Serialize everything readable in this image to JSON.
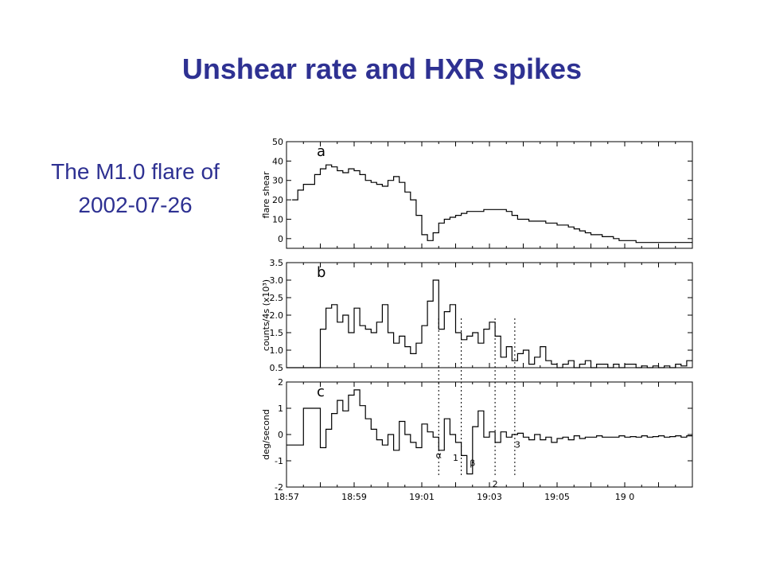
{
  "slide": {
    "title": "Unshear rate and HXR spikes",
    "subtitle_line1": "The M1.0 flare of",
    "subtitle_line2": "2002-07-26",
    "title_color": "#2e3192"
  },
  "chart_data": [
    {
      "type": "line",
      "panel_label": "a",
      "ylabel": "flare shear",
      "ylim": [
        -5,
        50
      ],
      "yticks": [
        "0",
        "10",
        "20",
        "30",
        "40",
        "50"
      ],
      "ytick_values": [
        0,
        10,
        20,
        30,
        40,
        50
      ],
      "xlim": [
        0,
        720
      ],
      "series": [
        {
          "step": true,
          "x": [
            10,
            20,
            30,
            50,
            60,
            70,
            80,
            90,
            100,
            110,
            120,
            130,
            140,
            150,
            160,
            170,
            180,
            190,
            200,
            210,
            220,
            230,
            240,
            250,
            260,
            270,
            280,
            290,
            300,
            310,
            320,
            330,
            340,
            350,
            360,
            370,
            380,
            390,
            400,
            410,
            420,
            430,
            440,
            450,
            460,
            470,
            480,
            490,
            500,
            510,
            520,
            530,
            540,
            550,
            560,
            570,
            580,
            590,
            600,
            610,
            620,
            630,
            640,
            650,
            660,
            670,
            680,
            690,
            700,
            710
          ],
          "y": [
            20,
            25,
            28,
            33,
            36,
            38,
            37,
            35,
            34,
            36,
            35,
            33,
            30,
            29,
            28,
            27,
            30,
            32,
            29,
            24,
            20,
            12,
            2,
            -1,
            3,
            8,
            10,
            11,
            12,
            13,
            14,
            14,
            14,
            15,
            15,
            15,
            15,
            14,
            12,
            10,
            10,
            9,
            9,
            9,
            8,
            8,
            7,
            7,
            6,
            5,
            4,
            3,
            2,
            2,
            1,
            1,
            0,
            -1,
            -1,
            -1,
            -2,
            -2,
            -2,
            -2,
            -2,
            -2,
            -2,
            -2,
            -2,
            -2
          ]
        }
      ]
    },
    {
      "type": "line",
      "panel_label": "b",
      "ylabel": "counts/4s (x10³)",
      "ylim": [
        0.5,
        3.5
      ],
      "yticks": [
        "0.5",
        "1.0",
        "1.5",
        "2.0",
        "2.5",
        "3.0",
        "3.5"
      ],
      "ytick_values": [
        0.5,
        1.0,
        1.5,
        2.0,
        2.5,
        3.0,
        3.5
      ],
      "xlim": [
        0,
        720
      ],
      "series": [
        {
          "step": true,
          "x": [
            0,
            60,
            70,
            80,
            90,
            100,
            110,
            120,
            130,
            140,
            150,
            160,
            170,
            180,
            190,
            200,
            210,
            220,
            230,
            240,
            250,
            260,
            270,
            280,
            290,
            300,
            310,
            320,
            330,
            340,
            350,
            360,
            370,
            380,
            390,
            400,
            410,
            420,
            430,
            440,
            450,
            460,
            470,
            480,
            490,
            500,
            510,
            520,
            530,
            540,
            550,
            560,
            570,
            580,
            590,
            600,
            610,
            620,
            630,
            640,
            650,
            660,
            670,
            680,
            690,
            700,
            710
          ],
          "y": [
            0.5,
            1.6,
            2.2,
            2.3,
            1.8,
            2.0,
            1.5,
            2.2,
            1.7,
            1.6,
            1.5,
            1.8,
            2.3,
            1.5,
            1.2,
            1.4,
            1.1,
            0.9,
            1.2,
            1.7,
            2.4,
            3.0,
            1.6,
            2.1,
            2.3,
            1.5,
            1.3,
            1.4,
            1.5,
            1.2,
            1.6,
            1.8,
            1.4,
            0.8,
            1.1,
            0.7,
            0.9,
            1.0,
            0.6,
            0.8,
            1.1,
            0.7,
            0.6,
            0.5,
            0.6,
            0.7,
            0.5,
            0.6,
            0.7,
            0.5,
            0.6,
            0.6,
            0.5,
            0.6,
            0.5,
            0.6,
            0.6,
            0.5,
            0.55,
            0.5,
            0.55,
            0.5,
            0.55,
            0.5,
            0.6,
            0.55,
            0.7
          ]
        }
      ]
    },
    {
      "type": "line",
      "panel_label": "c",
      "ylabel": "deg/second",
      "ylim": [
        -2,
        2
      ],
      "yticks": [
        "-2",
        "-1",
        "0",
        "1",
        "2"
      ],
      "ytick_values": [
        -2,
        -1,
        0,
        1,
        2
      ],
      "xlim": [
        0,
        720
      ],
      "xlabel": "",
      "xticks": [
        "18:57",
        "18:59",
        "19:01",
        "19:03",
        "19:05",
        "19 0"
      ],
      "xtick_values": [
        0,
        120,
        240,
        360,
        480,
        600
      ],
      "series": [
        {
          "step": true,
          "x": [
            0,
            30,
            60,
            70,
            80,
            90,
            100,
            110,
            120,
            130,
            140,
            150,
            160,
            170,
            180,
            190,
            200,
            210,
            220,
            230,
            240,
            250,
            260,
            270,
            280,
            290,
            300,
            310,
            320,
            330,
            340,
            350,
            360,
            370,
            380,
            390,
            400,
            410,
            420,
            430,
            440,
            450,
            460,
            470,
            480,
            490,
            500,
            510,
            520,
            530,
            540,
            550,
            560,
            570,
            580,
            590,
            600,
            610,
            620,
            630,
            640,
            650,
            660,
            670,
            680,
            690,
            700,
            710
          ],
          "y": [
            -0.4,
            1.0,
            -0.5,
            0.2,
            0.8,
            1.3,
            0.9,
            1.5,
            1.7,
            1.1,
            0.6,
            0.2,
            -0.2,
            -0.4,
            0.0,
            -0.6,
            0.5,
            0.0,
            -0.3,
            -0.5,
            0.4,
            0.1,
            -0.1,
            -0.6,
            0.6,
            0.0,
            -0.3,
            -0.8,
            -1.5,
            0.3,
            0.9,
            -0.1,
            0.1,
            -0.3,
            0.1,
            -0.1,
            0.0,
            0.05,
            -0.1,
            -0.2,
            0.0,
            -0.2,
            -0.1,
            -0.3,
            -0.15,
            -0.1,
            -0.2,
            -0.05,
            -0.15,
            -0.1,
            -0.1,
            -0.05,
            -0.1,
            -0.1,
            -0.1,
            -0.05,
            -0.1,
            -0.08,
            -0.1,
            -0.05,
            -0.1,
            -0.08,
            -0.05,
            -0.1,
            -0.08,
            -0.05,
            -0.1,
            -0.05
          ]
        }
      ],
      "annotations": [
        "α",
        "1",
        "β",
        "2",
        "3"
      ]
    }
  ],
  "marker_lines": [
    270,
    310,
    370,
    405
  ]
}
